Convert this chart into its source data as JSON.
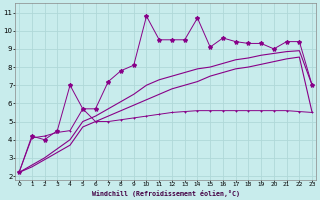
{
  "xlabel": "Windchill (Refroidissement éolien,°C)",
  "background_color": "#c8ecec",
  "grid_color": "#b0d8d8",
  "line_color": "#880088",
  "x_ticks": [
    0,
    1,
    2,
    3,
    4,
    5,
    6,
    7,
    8,
    9,
    10,
    11,
    12,
    13,
    14,
    15,
    16,
    17,
    18,
    19,
    20,
    21,
    22,
    23
  ],
  "y_ticks": [
    2,
    3,
    4,
    5,
    6,
    7,
    8,
    9,
    10,
    11
  ],
  "ylim": [
    1.8,
    11.5
  ],
  "xlim": [
    -0.3,
    23.3
  ],
  "line1_x": [
    0,
    1,
    2,
    3,
    4,
    5,
    6,
    7,
    8,
    9,
    10,
    11,
    12,
    13,
    14,
    15,
    16,
    17,
    18,
    19,
    20,
    21,
    22,
    23
  ],
  "line1_y": [
    2.2,
    4.2,
    4.0,
    4.5,
    7.0,
    5.7,
    5.7,
    7.2,
    7.8,
    8.1,
    10.8,
    9.5,
    9.5,
    9.5,
    10.7,
    9.1,
    9.6,
    9.4,
    9.3,
    9.3,
    9.0,
    9.4,
    9.4,
    7.0
  ],
  "line2_x": [
    0,
    1,
    2,
    3,
    4,
    5,
    6,
    7,
    8,
    9,
    10,
    11,
    12,
    13,
    14,
    15,
    16,
    17,
    18,
    19,
    20,
    21,
    22,
    23
  ],
  "line2_y": [
    2.2,
    4.1,
    4.2,
    4.4,
    4.5,
    5.7,
    5.0,
    5.0,
    5.1,
    5.2,
    5.3,
    5.4,
    5.5,
    5.55,
    5.6,
    5.6,
    5.6,
    5.6,
    5.6,
    5.6,
    5.6,
    5.6,
    5.55,
    5.5
  ],
  "line3_x": [
    0,
    1,
    2,
    3,
    4,
    5,
    6,
    7,
    8,
    9,
    10,
    11,
    12,
    13,
    14,
    15,
    16,
    17,
    18,
    19,
    20,
    21,
    22,
    23
  ],
  "line3_y": [
    2.2,
    2.6,
    3.0,
    3.5,
    4.0,
    5.0,
    5.3,
    5.7,
    6.1,
    6.5,
    7.0,
    7.3,
    7.5,
    7.7,
    7.9,
    8.0,
    8.2,
    8.4,
    8.5,
    8.65,
    8.75,
    8.85,
    8.9,
    7.0
  ],
  "line4_x": [
    0,
    1,
    2,
    3,
    4,
    5,
    6,
    7,
    8,
    9,
    10,
    11,
    12,
    13,
    14,
    15,
    16,
    17,
    18,
    19,
    20,
    21,
    22,
    23
  ],
  "line4_y": [
    2.2,
    2.5,
    2.9,
    3.3,
    3.7,
    4.7,
    5.0,
    5.3,
    5.6,
    5.9,
    6.2,
    6.5,
    6.8,
    7.0,
    7.2,
    7.5,
    7.7,
    7.9,
    8.0,
    8.15,
    8.3,
    8.45,
    8.55,
    5.5
  ]
}
